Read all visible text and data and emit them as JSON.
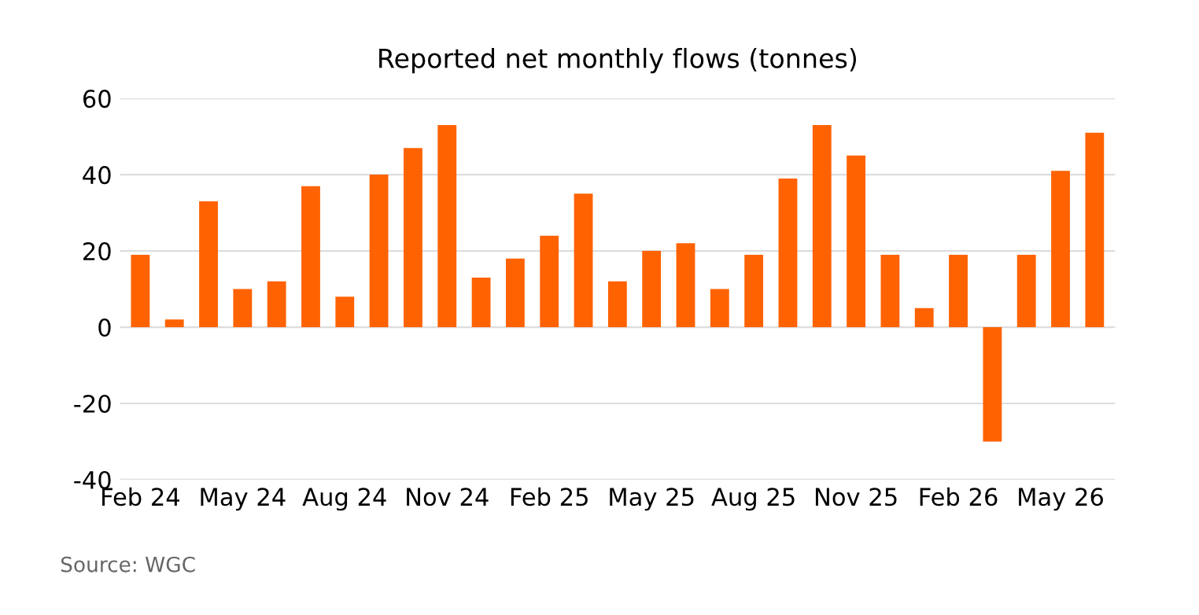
{
  "chart_data": {
    "type": "bar",
    "title": "Reported net monthly flows (tonnes)",
    "categories": [
      "Feb 24",
      null,
      null,
      "May 24",
      null,
      null,
      "Aug 24",
      null,
      null,
      "Nov 24",
      null,
      null,
      "Feb 25",
      null,
      null,
      "May 25",
      null,
      null,
      "Aug 25",
      null,
      null,
      "Nov 25",
      null,
      null,
      "Feb 26",
      null,
      null,
      "May 26",
      null
    ],
    "values": [
      19,
      2,
      33,
      10,
      12,
      37,
      8,
      40,
      47,
      53,
      13,
      18,
      24,
      35,
      12,
      20,
      22,
      10,
      19,
      39,
      53,
      45,
      19,
      5,
      19,
      -30,
      19,
      41,
      51
    ],
    "color": "#ff6200",
    "ylim": [
      -40,
      60
    ],
    "yticks": [
      -40,
      -20,
      0,
      20,
      40,
      60
    ],
    "grid": "y",
    "annotations": [
      "Source: WGC"
    ]
  }
}
